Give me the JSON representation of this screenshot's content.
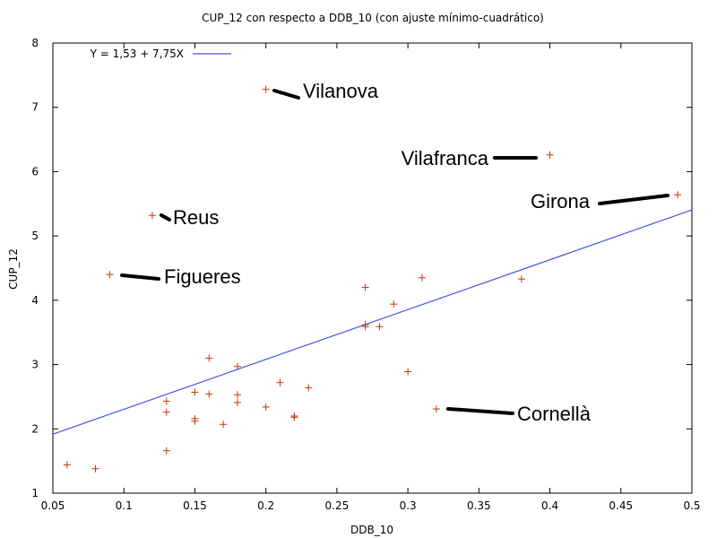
{
  "chart_data": {
    "type": "scatter",
    "title": "CUP_12 con respecto a DDB_10 (con ajuste mínimo-cuadrático)",
    "xlabel": "DDB_10",
    "ylabel": "CUP_12",
    "xlim": [
      0.05,
      0.5
    ],
    "ylim": [
      1,
      8
    ],
    "xticks": [
      "0.05",
      "0.1",
      "0.15",
      "0.2",
      "0.25",
      "0.3",
      "0.35",
      "0.4",
      "0.45",
      "0.5"
    ],
    "yticks": [
      "1",
      "2",
      "3",
      "4",
      "5",
      "6",
      "7",
      "8"
    ],
    "grid": false,
    "legend_position": "top-left",
    "marker_color": "#cc3300",
    "fit_color": "#4455dd",
    "series": [
      {
        "points": [
          {
            "x": 0.06,
            "y": 1.44
          },
          {
            "x": 0.08,
            "y": 1.38
          },
          {
            "x": 0.09,
            "y": 4.4
          },
          {
            "x": 0.12,
            "y": 5.32
          },
          {
            "x": 0.13,
            "y": 2.43
          },
          {
            "x": 0.13,
            "y": 2.26
          },
          {
            "x": 0.13,
            "y": 1.66
          },
          {
            "x": 0.15,
            "y": 2.57
          },
          {
            "x": 0.15,
            "y": 2.16
          },
          {
            "x": 0.15,
            "y": 2.12
          },
          {
            "x": 0.16,
            "y": 3.1
          },
          {
            "x": 0.16,
            "y": 2.54
          },
          {
            "x": 0.17,
            "y": 2.07
          },
          {
            "x": 0.18,
            "y": 2.97
          },
          {
            "x": 0.18,
            "y": 2.53
          },
          {
            "x": 0.18,
            "y": 2.41
          },
          {
            "x": 0.2,
            "y": 7.28
          },
          {
            "x": 0.2,
            "y": 2.34
          },
          {
            "x": 0.21,
            "y": 2.72
          },
          {
            "x": 0.22,
            "y": 2.2
          },
          {
            "x": 0.22,
            "y": 2.18
          },
          {
            "x": 0.23,
            "y": 2.64
          },
          {
            "x": 0.27,
            "y": 4.2
          },
          {
            "x": 0.27,
            "y": 3.62
          },
          {
            "x": 0.27,
            "y": 3.59
          },
          {
            "x": 0.28,
            "y": 3.59
          },
          {
            "x": 0.29,
            "y": 3.94
          },
          {
            "x": 0.3,
            "y": 2.89
          },
          {
            "x": 0.31,
            "y": 4.35
          },
          {
            "x": 0.32,
            "y": 2.31
          },
          {
            "x": 0.38,
            "y": 4.33
          },
          {
            "x": 0.4,
            "y": 6.26
          },
          {
            "x": 0.49,
            "y": 5.64
          }
        ]
      },
      {
        "name": "Y = 1,53 + 7,75X",
        "type": "line",
        "intercept": 1.53,
        "slope": 7.75
      }
    ],
    "annotations": [
      {
        "text": "Vilanova",
        "x": 0.2,
        "y": 7.28
      },
      {
        "text": "Vilafranca",
        "x": 0.4,
        "y": 6.26
      },
      {
        "text": "Girona",
        "x": 0.49,
        "y": 5.64
      },
      {
        "text": "Reus",
        "x": 0.12,
        "y": 5.32
      },
      {
        "text": "Figueres",
        "x": 0.09,
        "y": 4.4
      },
      {
        "text": "Cornellà",
        "x": 0.32,
        "y": 2.31
      }
    ]
  }
}
